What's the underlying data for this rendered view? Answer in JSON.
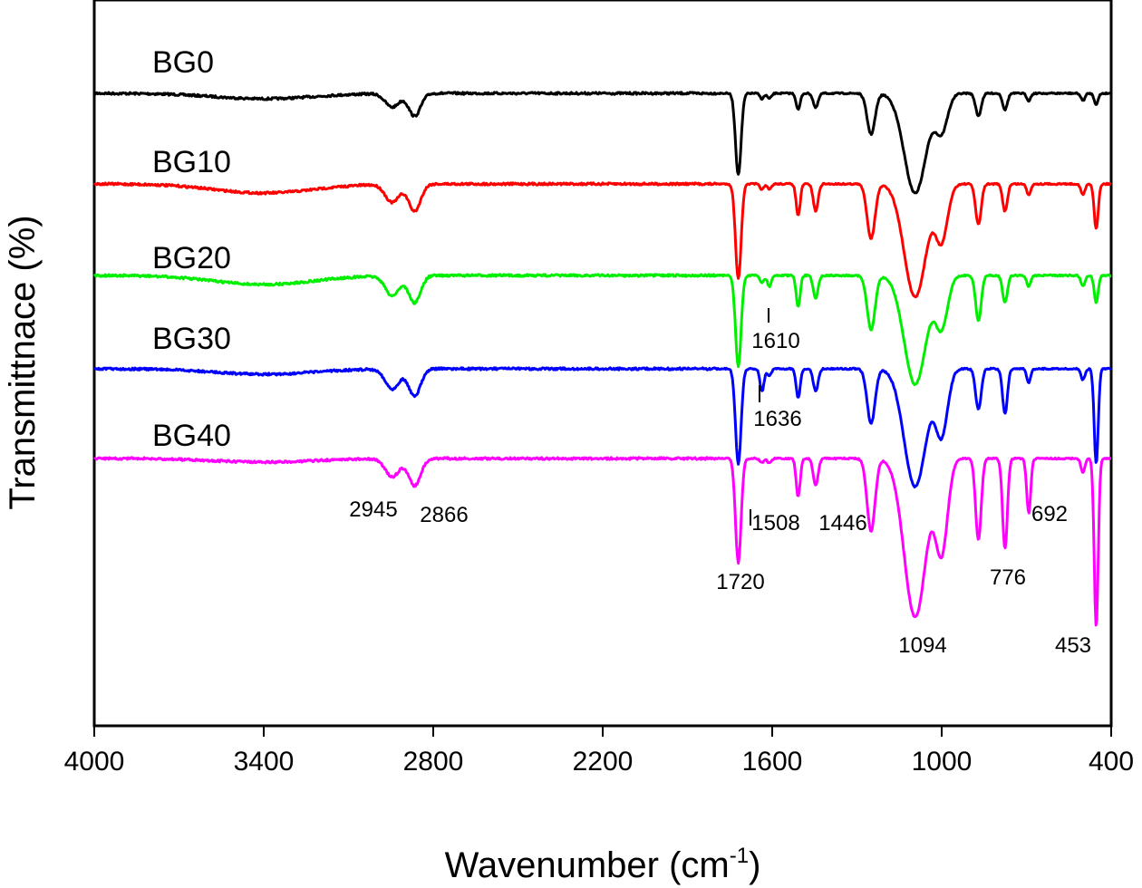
{
  "chart_data": {
    "type": "line",
    "xlabel": "Wavenumber (cm",
    "xlabel_sup": "-1",
    "xlabel_close": ")",
    "ylabel": "Transmittnace (%)",
    "xlim": [
      4000,
      400
    ],
    "x_reversed": true,
    "x_ticks": [
      4000,
      3400,
      2800,
      2200,
      1600,
      1000,
      400
    ],
    "y_ticks_shown": false,
    "grid": false,
    "legend": "none",
    "series": [
      {
        "name": "BG0",
        "color": "#000000",
        "baseline": 1.0,
        "bands": [
          [
            2945,
            0.15,
            35
          ],
          [
            2866,
            0.25,
            30
          ],
          [
            3400,
            0.06,
            250
          ],
          [
            1720,
            0.9,
            14
          ],
          [
            1636,
            0.06,
            10
          ],
          [
            1610,
            0.06,
            10
          ],
          [
            1508,
            0.18,
            10
          ],
          [
            1446,
            0.16,
            12
          ],
          [
            1250,
            0.45,
            20
          ],
          [
            1094,
            1.1,
            55
          ],
          [
            1000,
            0.4,
            30
          ],
          [
            870,
            0.25,
            14
          ],
          [
            776,
            0.18,
            12
          ],
          [
            692,
            0.08,
            10
          ],
          [
            453,
            0.12,
            10
          ],
          [
            500,
            0.08,
            10
          ]
        ]
      },
      {
        "name": "BG10",
        "color": "#ff0000",
        "baseline": 1.0,
        "bands": [
          [
            2945,
            0.2,
            35
          ],
          [
            2866,
            0.3,
            30
          ],
          [
            3400,
            0.1,
            250
          ],
          [
            1720,
            1.05,
            14
          ],
          [
            1636,
            0.06,
            10
          ],
          [
            1610,
            0.06,
            10
          ],
          [
            1508,
            0.35,
            10
          ],
          [
            1446,
            0.3,
            12
          ],
          [
            1250,
            0.6,
            20
          ],
          [
            1094,
            1.25,
            55
          ],
          [
            1000,
            0.6,
            30
          ],
          [
            870,
            0.45,
            14
          ],
          [
            776,
            0.3,
            12
          ],
          [
            692,
            0.12,
            10
          ],
          [
            453,
            0.5,
            10
          ],
          [
            500,
            0.12,
            10
          ]
        ]
      },
      {
        "name": "BG20",
        "color": "#00ee00",
        "baseline": 1.0,
        "bands": [
          [
            2945,
            0.22,
            35
          ],
          [
            2866,
            0.3,
            30
          ],
          [
            3400,
            0.1,
            250
          ],
          [
            1720,
            1.0,
            14
          ],
          [
            1636,
            0.08,
            10
          ],
          [
            1610,
            0.12,
            10
          ],
          [
            1508,
            0.35,
            10
          ],
          [
            1446,
            0.25,
            12
          ],
          [
            1250,
            0.6,
            20
          ],
          [
            1094,
            1.2,
            55
          ],
          [
            1000,
            0.55,
            30
          ],
          [
            870,
            0.5,
            14
          ],
          [
            776,
            0.3,
            12
          ],
          [
            692,
            0.12,
            10
          ],
          [
            453,
            0.3,
            10
          ],
          [
            500,
            0.12,
            10
          ]
        ]
      },
      {
        "name": "BG30",
        "color": "#0000ff",
        "baseline": 1.0,
        "bands": [
          [
            2945,
            0.22,
            35
          ],
          [
            2866,
            0.3,
            30
          ],
          [
            3400,
            0.06,
            250
          ],
          [
            1720,
            1.05,
            14
          ],
          [
            1636,
            0.25,
            10
          ],
          [
            1610,
            0.08,
            10
          ],
          [
            1508,
            0.32,
            10
          ],
          [
            1446,
            0.25,
            12
          ],
          [
            1250,
            0.6,
            20
          ],
          [
            1094,
            1.3,
            55
          ],
          [
            1000,
            0.7,
            30
          ],
          [
            870,
            0.45,
            14
          ],
          [
            776,
            0.5,
            12
          ],
          [
            692,
            0.15,
            10
          ],
          [
            453,
            1.05,
            10
          ],
          [
            500,
            0.12,
            10
          ]
        ]
      },
      {
        "name": "BG40",
        "color": "#ff00ff",
        "baseline": 1.0,
        "bands": [
          [
            2945,
            0.2,
            35
          ],
          [
            2866,
            0.3,
            30
          ],
          [
            3400,
            0.04,
            250
          ],
          [
            1720,
            1.15,
            14
          ],
          [
            1636,
            0.05,
            10
          ],
          [
            1610,
            0.05,
            10
          ],
          [
            1508,
            0.42,
            10
          ],
          [
            1446,
            0.3,
            12
          ],
          [
            1250,
            0.8,
            20
          ],
          [
            1094,
            1.75,
            55
          ],
          [
            1000,
            1.0,
            30
          ],
          [
            870,
            0.9,
            14
          ],
          [
            776,
            1.0,
            12
          ],
          [
            692,
            0.6,
            10
          ],
          [
            453,
            1.85,
            10
          ],
          [
            500,
            0.15,
            10
          ]
        ]
      }
    ],
    "annotations": [
      {
        "text": "2945",
        "x": 2945,
        "series": "BG40"
      },
      {
        "text": "2866",
        "x": 2866,
        "series": "BG40"
      },
      {
        "text": "1720",
        "x": 1720,
        "series": "BG40"
      },
      {
        "text": "1508",
        "x": 1508,
        "series": "BG40"
      },
      {
        "text": "1446",
        "x": 1446,
        "series": "BG40"
      },
      {
        "text": "1094",
        "x": 1094,
        "series": "BG40"
      },
      {
        "text": "776",
        "x": 776,
        "series": "BG40"
      },
      {
        "text": "692",
        "x": 692,
        "series": "BG40"
      },
      {
        "text": "453",
        "x": 453,
        "series": "BG40"
      },
      {
        "text": "1610",
        "x": 1610,
        "series": "BG20"
      },
      {
        "text": "1636",
        "x": 1636,
        "series": "BG30"
      }
    ]
  }
}
